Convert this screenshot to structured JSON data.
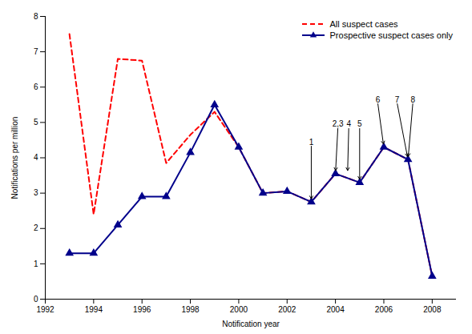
{
  "chart_data": {
    "type": "line",
    "xlabel": "Notification year",
    "ylabel": "Notifications per million",
    "x": [
      1993,
      1994,
      1995,
      1996,
      1997,
      1998,
      1999,
      2000,
      2001,
      2002,
      2003,
      2004,
      2005,
      2006,
      2007,
      2008
    ],
    "series": [
      {
        "name": "All suspect cases",
        "color": "#ff0000",
        "line_style": "dashed",
        "values": [
          7.5,
          2.4,
          6.8,
          6.75,
          3.85,
          4.65,
          5.3,
          4.3,
          3.0,
          3.05,
          2.75,
          3.55,
          3.3,
          4.3,
          3.95,
          0.65
        ]
      },
      {
        "name": "Prospective suspect cases only",
        "color": "#00008b",
        "line_style": "solid",
        "marker": "triangle",
        "values": [
          1.3,
          1.3,
          2.1,
          2.9,
          2.9,
          4.15,
          5.5,
          4.3,
          3.0,
          3.05,
          2.75,
          3.55,
          3.3,
          4.3,
          3.95,
          0.65
        ]
      }
    ],
    "xlim": [
      1992,
      2009
    ],
    "xticks": [
      1992,
      1994,
      1996,
      1998,
      2000,
      2002,
      2004,
      2006,
      2008
    ],
    "ylim": [
      0,
      8
    ],
    "yticks": [
      0,
      1,
      2,
      3,
      4,
      5,
      6,
      7,
      8
    ],
    "grid": false,
    "legend": "upper right",
    "annotations": [
      {
        "text": "1",
        "x": 2003,
        "y": 2.75,
        "text_x": 2003.0,
        "text_y": 4.35
      },
      {
        "text": "2,3",
        "x": 2004,
        "y": 3.55,
        "text_x": 2004.1,
        "text_y": 4.85
      },
      {
        "text": "4",
        "x": 2004.5,
        "y": 3.55,
        "text_x": 2004.55,
        "text_y": 4.85
      },
      {
        "text": "5",
        "x": 2005,
        "y": 3.3,
        "text_x": 2005.0,
        "text_y": 4.85
      },
      {
        "text": "6",
        "x": 2006,
        "y": 4.3,
        "text_x": 2005.75,
        "text_y": 5.55
      },
      {
        "text": "7",
        "x": 2007,
        "y": 3.95,
        "text_x": 2006.55,
        "text_y": 5.55
      },
      {
        "text": "8",
        "x": 2007,
        "y": 3.95,
        "text_x": 2007.2,
        "text_y": 5.55
      }
    ]
  }
}
